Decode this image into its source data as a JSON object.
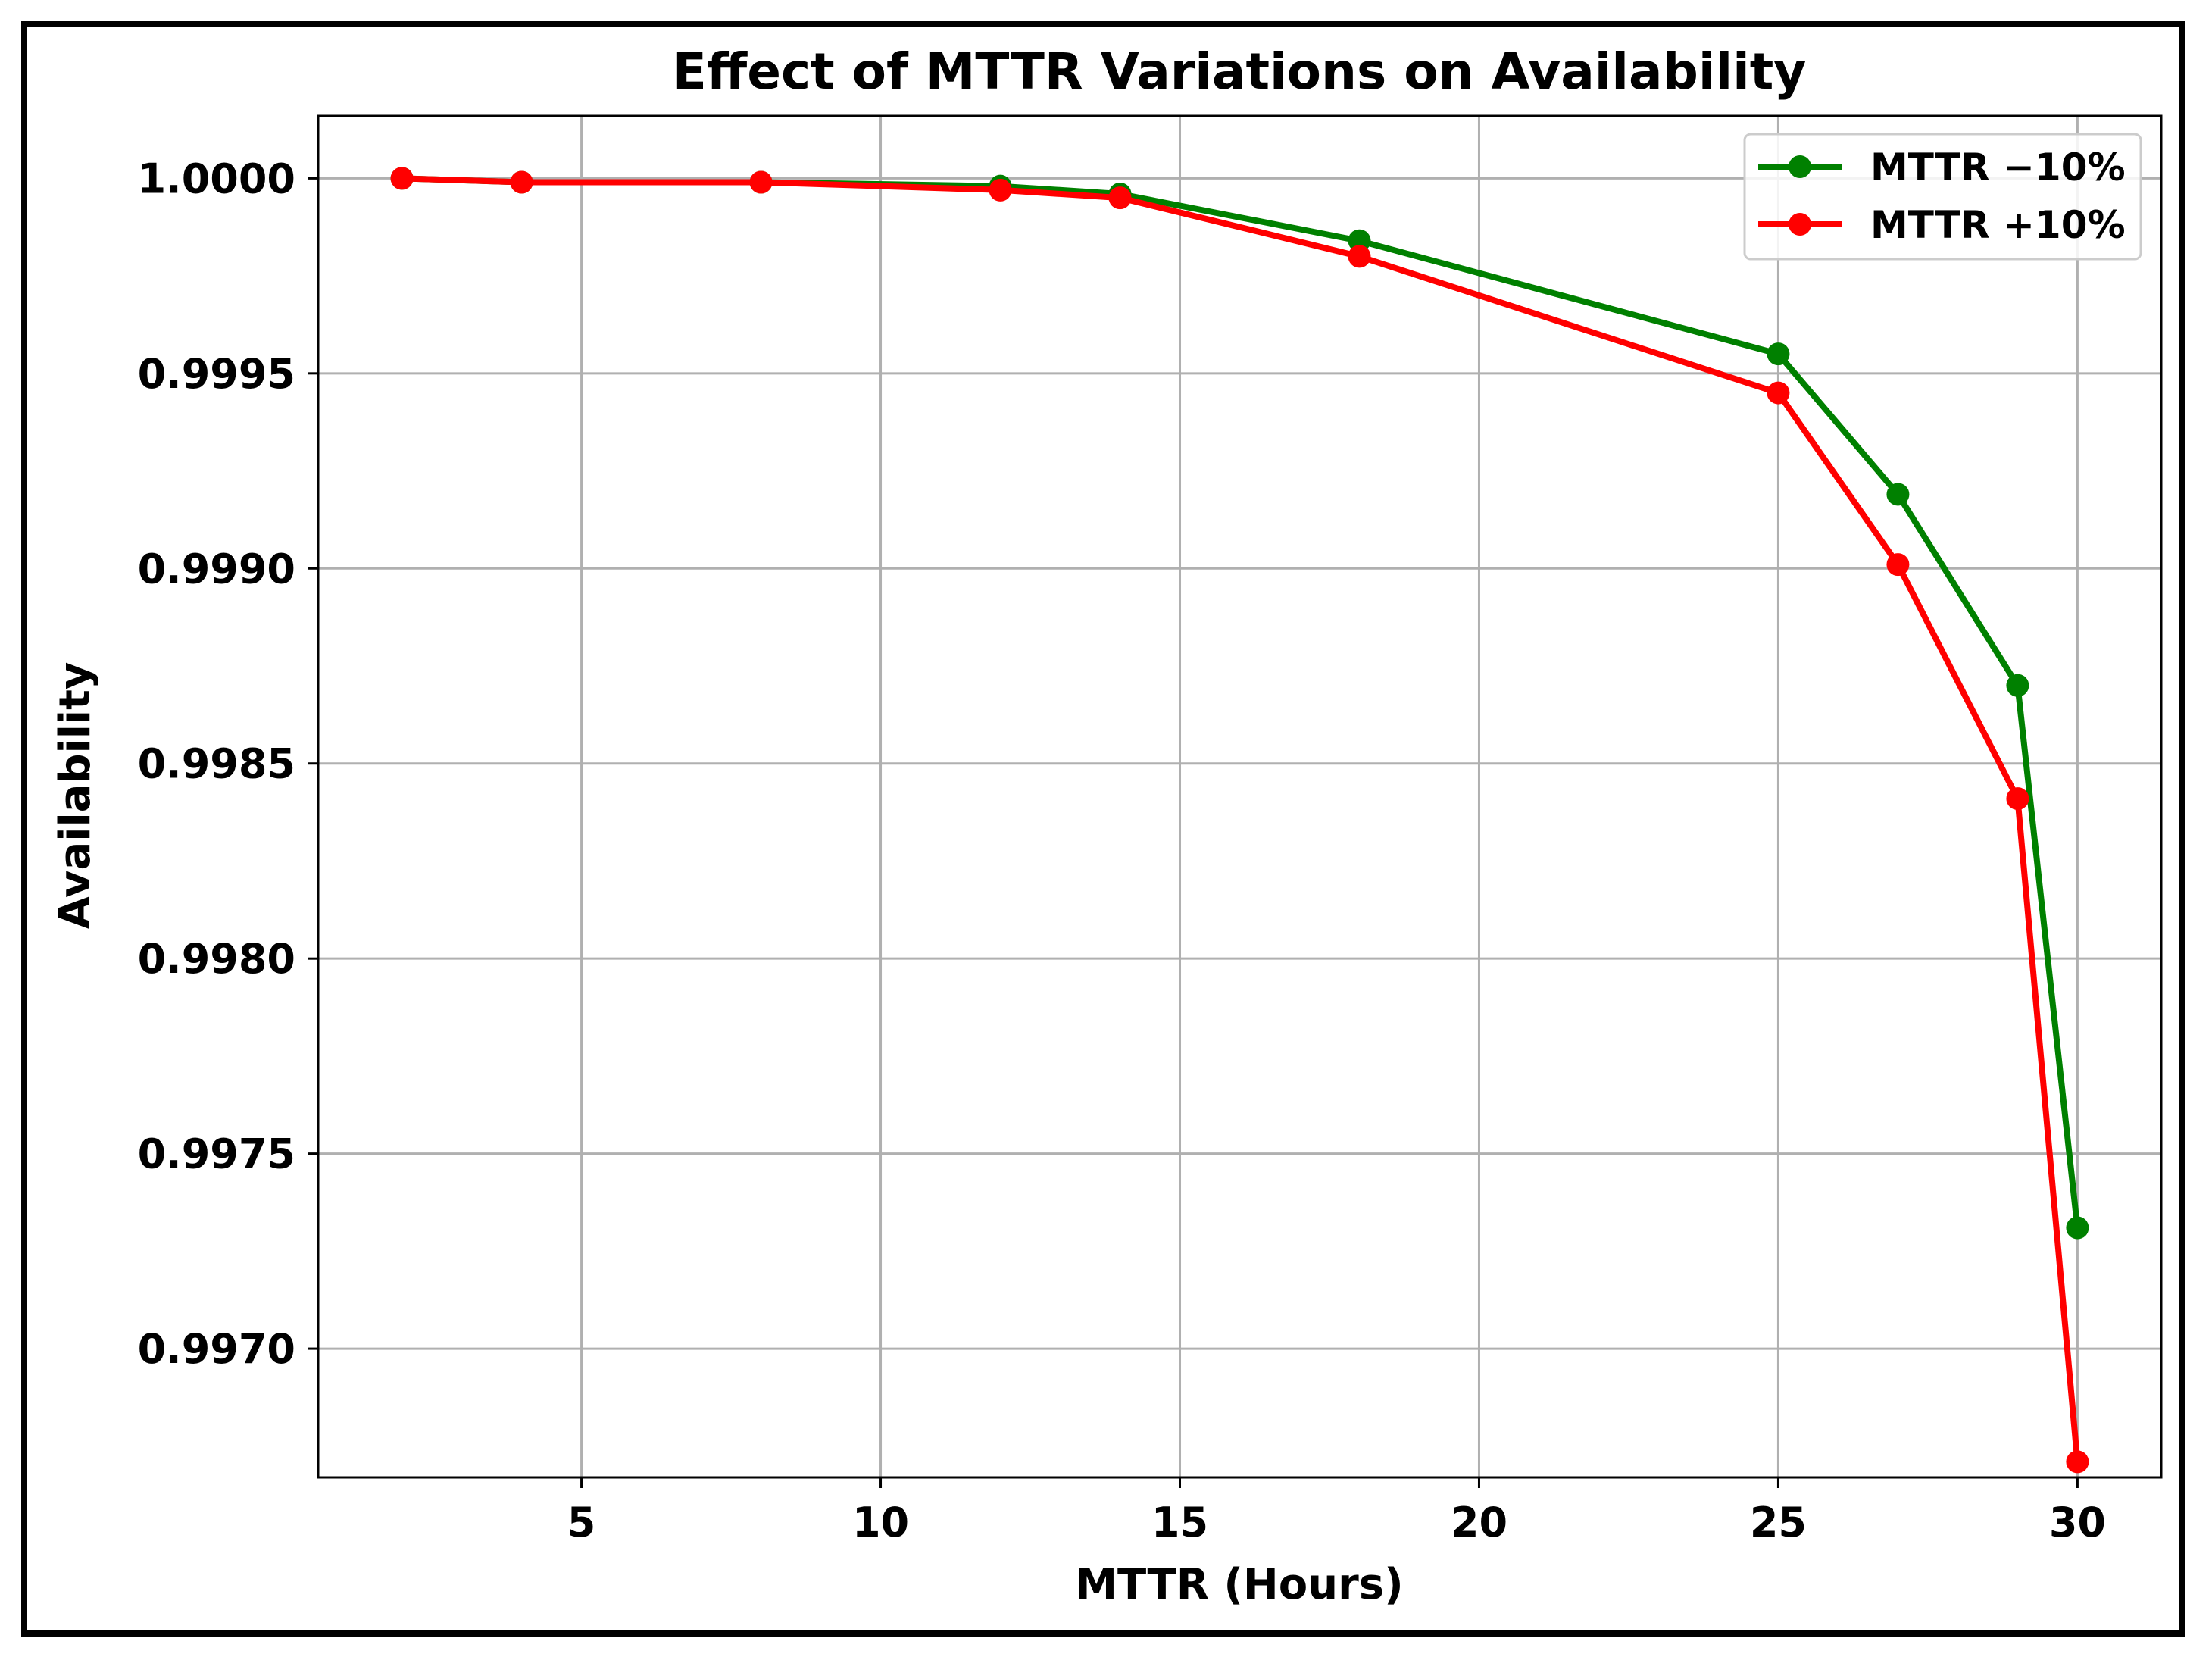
{
  "chart_data": {
    "type": "line",
    "title": "Effect of MTTR Variations on Availability",
    "xlabel": "MTTR (Hours)",
    "ylabel": "Availability",
    "xlim": [
      0.6,
      31.4
    ],
    "ylim": [
      0.99667,
      1.00016
    ],
    "xticks": [
      5,
      10,
      15,
      20,
      25,
      30
    ],
    "yticks": [
      0.997,
      0.9975,
      0.998,
      0.9985,
      0.999,
      0.9995,
      1.0
    ],
    "xtick_labels": [
      "5",
      "10",
      "15",
      "20",
      "25",
      "30"
    ],
    "ytick_labels": [
      "0.9970",
      "0.9975",
      "0.9980",
      "0.9985",
      "0.9990",
      "0.9995",
      "1.0000"
    ],
    "grid": true,
    "legend_position": "top-right",
    "x": [
      2,
      4,
      8,
      12,
      14,
      18,
      25,
      27,
      29,
      30
    ],
    "series": [
      {
        "name": "MTTR −10%",
        "color": "#008000",
        "values": [
          1.0,
          0.99999,
          0.99999,
          0.99998,
          0.99996,
          0.99984,
          0.99955,
          0.99919,
          0.9987,
          0.99731
        ]
      },
      {
        "name": "MTTR +10%",
        "color": "#ff0000",
        "values": [
          1.0,
          0.99999,
          0.99999,
          0.99997,
          0.99995,
          0.9998,
          0.99945,
          0.99901,
          0.99841,
          0.99671
        ]
      }
    ]
  }
}
